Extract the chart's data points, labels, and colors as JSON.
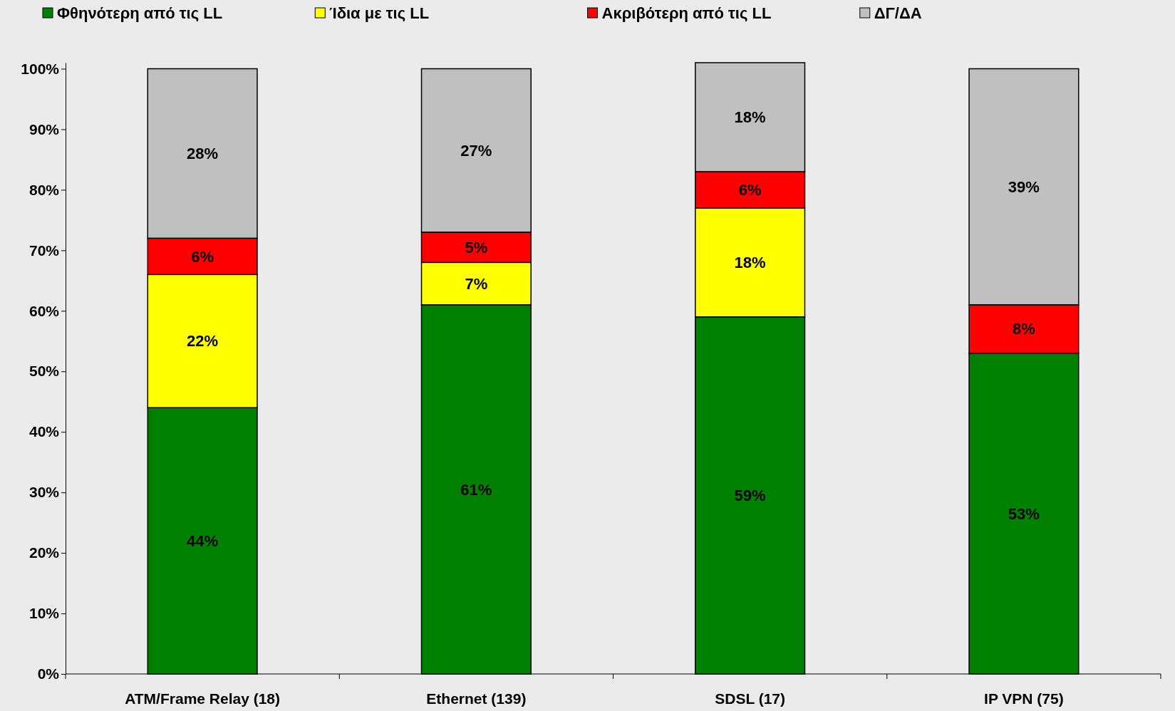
{
  "chart_data": {
    "type": "bar",
    "stacked": true,
    "categories": [
      "ATM/Frame Relay (18)",
      "Ethernet (139)",
      "SDSL (17)",
      "IP VPN (75)"
    ],
    "series": [
      {
        "name": "Φθηνότερη από τις LL",
        "color": "#008000",
        "values": [
          44,
          61,
          59,
          53
        ],
        "value_labels": [
          "44%",
          "61%",
          "59%",
          "53%"
        ]
      },
      {
        "name": "Ίδια με τις LL",
        "color": "#ffff00",
        "values": [
          22,
          7,
          18,
          null
        ],
        "value_labels": [
          "22%",
          "7%",
          "18%",
          null
        ]
      },
      {
        "name": "Ακριβότερη από τις LL",
        "color": "#ff0000",
        "values": [
          6,
          5,
          6,
          8
        ],
        "value_labels": [
          "6%",
          "5%",
          "6%",
          "8%"
        ]
      },
      {
        "name": "ΔΓ/ΔΑ",
        "color": "#c0c0c0",
        "values": [
          28,
          27,
          18,
          39
        ],
        "value_labels": [
          "28%",
          "27%",
          "18%",
          "39%"
        ]
      }
    ],
    "ylim": [
      0,
      101
    ],
    "yticks": [
      {
        "value": 0,
        "label": "0%"
      },
      {
        "value": 10,
        "label": "10%"
      },
      {
        "value": 20,
        "label": "20%"
      },
      {
        "value": 30,
        "label": "30%"
      },
      {
        "value": 40,
        "label": "40%"
      },
      {
        "value": 50,
        "label": "50%"
      },
      {
        "value": 60,
        "label": "60%"
      },
      {
        "value": 70,
        "label": "70%"
      },
      {
        "value": 80,
        "label": "80%"
      },
      {
        "value": 90,
        "label": "90%"
      },
      {
        "value": 100,
        "label": "100%"
      }
    ],
    "grid": false,
    "legend": "top"
  }
}
